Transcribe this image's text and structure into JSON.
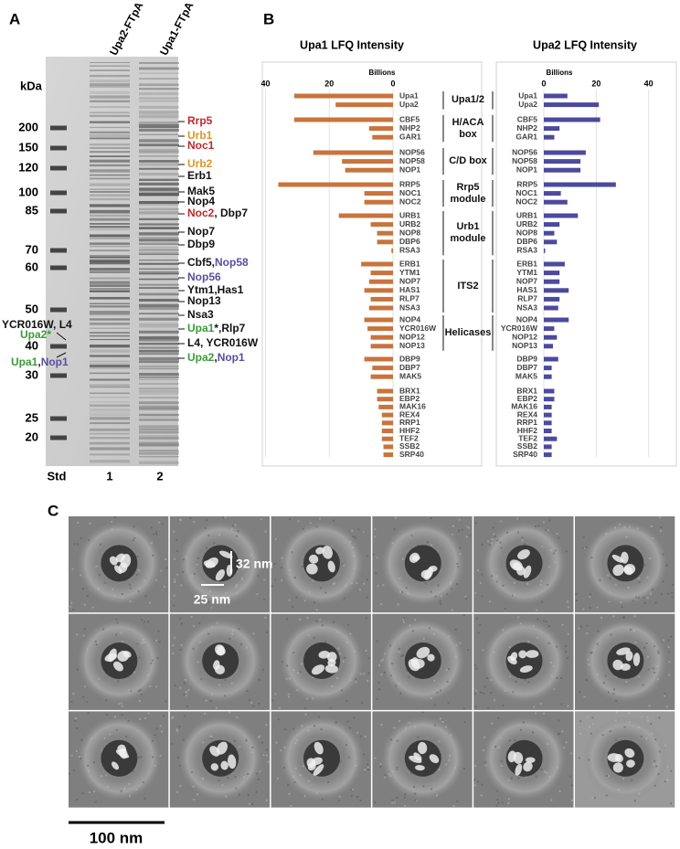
{
  "panel_a": {
    "label": "A",
    "lanes": [
      "Upa2-FTpA",
      "Upa1-FTpA"
    ],
    "unit": "kDa",
    "markers": [
      200,
      150,
      120,
      100,
      85,
      70,
      60,
      50,
      40,
      30,
      25,
      20
    ],
    "lane_labels": [
      "Std",
      "1",
      "2"
    ],
    "right_labels": [
      {
        "parts": [
          {
            "text": "Rrp5",
            "color": "#c1272d"
          }
        ]
      },
      {
        "parts": [
          {
            "text": "Urb1",
            "color": "#e0952a"
          }
        ]
      },
      {
        "parts": [
          {
            "text": "Noc1",
            "color": "#c1272d"
          }
        ]
      },
      {
        "parts": [
          {
            "text": "Urb2",
            "color": "#e0952a"
          }
        ]
      },
      {
        "parts": [
          {
            "text": "Erb1",
            "color": "#111111"
          }
        ]
      },
      {
        "parts": [
          {
            "text": "Mak5",
            "color": "#111111"
          }
        ]
      },
      {
        "parts": [
          {
            "text": "Nop4",
            "color": "#111111"
          }
        ]
      },
      {
        "parts": [
          {
            "text": "Noc2",
            "color": "#c1272d"
          },
          {
            "text": ", Dbp7",
            "color": "#111111"
          }
        ]
      },
      {
        "parts": [
          {
            "text": "Nop7",
            "color": "#111111"
          }
        ]
      },
      {
        "parts": [
          {
            "text": "Dbp9",
            "color": "#111111"
          }
        ]
      },
      {
        "parts": [
          {
            "text": "Cbf5,",
            "color": "#111111"
          },
          {
            "text": "Nop58",
            "color": "#5a4ea0"
          }
        ]
      },
      {
        "parts": [
          {
            "text": "Nop56",
            "color": "#5a4ea0"
          }
        ]
      },
      {
        "parts": [
          {
            "text": "Ytm1,Has1",
            "color": "#111111"
          }
        ]
      },
      {
        "parts": [
          {
            "text": "Nop13",
            "color": "#111111"
          }
        ]
      },
      {
        "parts": [
          {
            "text": "Nsa3",
            "color": "#111111"
          }
        ]
      },
      {
        "parts": [
          {
            "text": "Upa1",
            "color": "#3a9a3a"
          },
          {
            "text": "*,Rlp7",
            "color": "#111111"
          }
        ]
      },
      {
        "parts": [
          {
            "text": "L4, YCR016W",
            "color": "#111111"
          }
        ]
      },
      {
        "parts": [
          {
            "text": "Upa2",
            "color": "#3a9a3a"
          },
          {
            "text": ",",
            "color": "#111111"
          },
          {
            "text": "Nop1",
            "color": "#5a4ea0"
          }
        ]
      }
    ],
    "left_labels": [
      {
        "parts": [
          {
            "text": "YCR016W, L4",
            "color": "#111111"
          }
        ]
      },
      {
        "parts": [
          {
            "text": "Upa2*",
            "color": "#3a9a3a"
          }
        ]
      },
      {
        "parts": [
          {
            "text": "Upa1",
            "color": "#3a9a3a"
          },
          {
            "text": ",",
            "color": "#111111"
          },
          {
            "text": "Nop1",
            "color": "#5a4ea0"
          }
        ]
      }
    ]
  },
  "panel_b": {
    "label": "B",
    "groups": [
      "Upa1/2",
      "H/ACA box",
      "C/D box",
      "Rrp5 module",
      "Urb1 module",
      "ITS2",
      "Helicases"
    ]
  },
  "chart_data": [
    {
      "type": "hbar",
      "title": "Upa1 LFQ Intensity",
      "axis_label": "Billions",
      "reversed": true,
      "grid": true,
      "color": "#c8743c",
      "xlim": [
        0,
        41
      ],
      "xticks": [
        0,
        20,
        40
      ],
      "categories": [
        "Upa1",
        "Upa2",
        "CBF5",
        "NHP2",
        "GAR1",
        "NOP56",
        "NOP58",
        "NOP1",
        "RRP5",
        "NOC1",
        "NOC2",
        "URB1",
        "URB2",
        "NOP8",
        "DBP6",
        "RSA3",
        "ERB1",
        "YTM1",
        "NOP7",
        "HAS1",
        "RLP7",
        "NSA3",
        "NOP4",
        "YCR016W",
        "NOP12",
        "NOP13",
        "DBP9",
        "DBP7",
        "MAK5",
        "BRX1",
        "EBP2",
        "MAK16",
        "REX4",
        "RRP1",
        "HHF2",
        "TEF2",
        "SSB2",
        "SRP40"
      ],
      "values": [
        31,
        18,
        31,
        7.5,
        6.5,
        25,
        16,
        15,
        36,
        9,
        9,
        17,
        7,
        5,
        5,
        0.5,
        10,
        7,
        7.5,
        9,
        7,
        7.5,
        9,
        8,
        7,
        7,
        9,
        6.5,
        7,
        5,
        5,
        4.5,
        3.5,
        3.5,
        3.5,
        3.5,
        3,
        3
      ]
    },
    {
      "type": "hbar",
      "title": "Upa2 LFQ Intensity",
      "axis_label": "Billions",
      "reversed": false,
      "grid": true,
      "color": "#4b4a9e",
      "xlim": [
        0,
        45
      ],
      "xticks": [
        0,
        20,
        40
      ],
      "categories": [
        "Upa1",
        "Upa2",
        "CBF5",
        "NHP2",
        "GAR1",
        "NOP56",
        "NOP58",
        "NOP1",
        "RRP5",
        "NOC1",
        "NOC2",
        "URB1",
        "URB2",
        "NOP8",
        "DBP6",
        "RSA3",
        "ERB1",
        "YTM1",
        "NOP7",
        "HAS1",
        "RLP7",
        "NSA3",
        "NOP4",
        "YCR016W",
        "NOP12",
        "NOP13",
        "DBP9",
        "DBP7",
        "MAK5",
        "BRX1",
        "EBP2",
        "MAK16",
        "REX4",
        "RRP1",
        "HHF2",
        "TEF2",
        "SSB2",
        "SRP40"
      ],
      "values": [
        9,
        21,
        21.5,
        6,
        4,
        16,
        14,
        14,
        27.5,
        6.5,
        9,
        13,
        6,
        4,
        5,
        0.5,
        8,
        6,
        6,
        9.5,
        6,
        5.5,
        9.5,
        4,
        5,
        3.5,
        5.5,
        3,
        3,
        4,
        4,
        3,
        3,
        3,
        3,
        5,
        3,
        3
      ]
    }
  ],
  "panel_c": {
    "label": "C",
    "height_label": "32 nm",
    "width_label": "25 nm",
    "scale_label": "100 nm"
  }
}
